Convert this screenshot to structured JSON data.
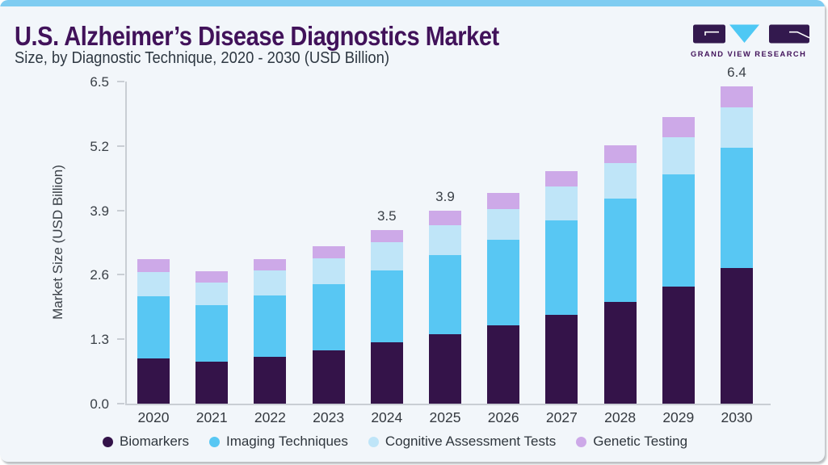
{
  "page": {
    "title": "U.S. Alzheimer’s Disease Diagnostics Market",
    "subtitle": "Size, by Diagnostic Technique, 2020 - 2030 (USD Billion)",
    "logo_text": "GRAND VIEW RESEARCH"
  },
  "colors": {
    "accent_bar": "#7FCCF1",
    "card_bg": "#F2F6FA",
    "title_text": "#41125A",
    "axis_line": "#C9CED4",
    "tick_text": "#3A4047",
    "logo_purple": "#33194E",
    "logo_blue": "#4EC8F4"
  },
  "chart_data": {
    "type": "bar",
    "stacked": true,
    "title": "U.S. Alzheimer’s Disease Diagnostics Market Size, by Diagnostic Technique, 2020 - 2030 (USD Billion)",
    "xlabel": "",
    "ylabel": "Market Size (USD Billion)",
    "ylim": [
      0,
      6.5
    ],
    "yticks": [
      "0.0",
      "1.3",
      "2.6",
      "3.9",
      "5.2",
      "6.5"
    ],
    "grid": false,
    "legend_position": "bottom",
    "categories": [
      "2020",
      "2021",
      "2022",
      "2023",
      "2024",
      "2025",
      "2026",
      "2027",
      "2028",
      "2029",
      "2030"
    ],
    "series": [
      {
        "name": "Biomarkers",
        "color": "#341349",
        "values": [
          0.92,
          0.85,
          0.95,
          1.08,
          1.23,
          1.4,
          1.58,
          1.8,
          2.06,
          2.36,
          2.74
        ]
      },
      {
        "name": "Imaging Techniques",
        "color": "#58C7F3",
        "values": [
          1.24,
          1.13,
          1.23,
          1.33,
          1.45,
          1.59,
          1.72,
          1.89,
          2.07,
          2.26,
          2.42
        ]
      },
      {
        "name": "Cognitive Assessment Tests",
        "color": "#BFE5F8",
        "values": [
          0.5,
          0.46,
          0.5,
          0.53,
          0.58,
          0.61,
          0.63,
          0.69,
          0.73,
          0.75,
          0.82
        ]
      },
      {
        "name": "Genetic Testing",
        "color": "#CDA9E8",
        "values": [
          0.26,
          0.23,
          0.24,
          0.23,
          0.24,
          0.3,
          0.32,
          0.32,
          0.35,
          0.41,
          0.42
        ]
      }
    ],
    "totals": [
      2.92,
      2.67,
      2.92,
      3.17,
      3.5,
      3.9,
      4.25,
      4.7,
      5.21,
      5.78,
      6.4
    ],
    "total_labels": [
      {
        "category": "2024",
        "label": "3.5"
      },
      {
        "category": "2025",
        "label": "3.9"
      },
      {
        "category": "2030",
        "label": "6.4"
      }
    ]
  }
}
